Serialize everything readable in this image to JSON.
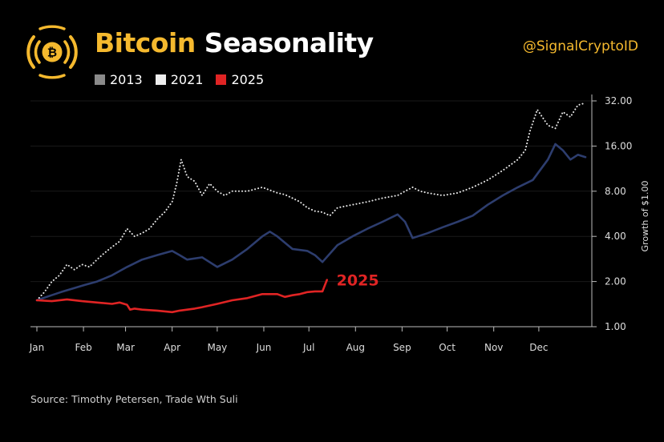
{
  "header": {
    "title_accent": "Bitcoin",
    "title_rest": "Seasonality",
    "handle": "@SignalCryptoID"
  },
  "legend": [
    {
      "label": "2013",
      "color": "#8a8a8a"
    },
    {
      "label": "2021",
      "color": "#eeeeee"
    },
    {
      "label": "2025",
      "color": "#e02424"
    }
  ],
  "source": "Source: Timothy Petersen, Trade Wth Suli",
  "colors": {
    "accent": "#f5b92e",
    "series_2013": "#2d3d6e",
    "series_2021": "#e6e6e6",
    "series_2025": "#e02424"
  },
  "chart_data": {
    "type": "line",
    "title": "Bitcoin Seasonality",
    "xlabel": "",
    "ylabel": "Growth of $1.00",
    "y_scale": "log2",
    "ylim": [
      1,
      40
    ],
    "ytick_values": [
      1,
      2,
      4,
      8,
      16,
      32
    ],
    "ytick_labels": [
      "1.00",
      "2.00",
      "4.00",
      "8.00",
      "16.00",
      "32.00"
    ],
    "x_unit": "day of year (0-365)",
    "xlim": [
      0,
      365
    ],
    "month_ticks": [
      0,
      31,
      59,
      90,
      120,
      151,
      181,
      212,
      243,
      273,
      304,
      334
    ],
    "month_labels": [
      "Jan",
      "Feb",
      "Mar",
      "Apr",
      "May",
      "Jun",
      "Jul",
      "Aug",
      "Sep",
      "Oct",
      "Nov",
      "Dec"
    ],
    "series": [
      {
        "name": "2013",
        "style": "solid",
        "x": [
          0,
          8,
          16,
          24,
          32,
          40,
          50,
          60,
          70,
          80,
          90,
          95,
          100,
          110,
          120,
          130,
          140,
          150,
          155,
          160,
          170,
          180,
          185,
          190,
          200,
          210,
          220,
          230,
          240,
          245,
          250,
          260,
          270,
          280,
          290,
          300,
          310,
          320,
          330,
          340,
          345,
          350,
          355,
          360,
          365
        ],
        "values": [
          1.5,
          1.6,
          1.7,
          1.8,
          1.9,
          2.0,
          2.2,
          2.5,
          2.8,
          3.0,
          3.2,
          3.0,
          2.8,
          2.9,
          2.5,
          2.8,
          3.3,
          4.0,
          4.3,
          4.0,
          3.3,
          3.2,
          3.0,
          2.7,
          3.5,
          4.0,
          4.5,
          5.0,
          5.6,
          5.0,
          3.9,
          4.2,
          4.6,
          5.0,
          5.5,
          6.5,
          7.5,
          8.5,
          9.5,
          13.0,
          16.5,
          15.0,
          13.0,
          14.0,
          13.5
        ]
      },
      {
        "name": "2021",
        "style": "dotted",
        "x": [
          0,
          5,
          10,
          15,
          20,
          25,
          30,
          35,
          40,
          45,
          50,
          55,
          60,
          65,
          70,
          75,
          80,
          85,
          90,
          93,
          96,
          100,
          105,
          110,
          115,
          120,
          125,
          130,
          140,
          150,
          160,
          165,
          170,
          175,
          180,
          185,
          190,
          195,
          200,
          210,
          220,
          230,
          240,
          245,
          250,
          255,
          260,
          270,
          280,
          290,
          300,
          310,
          320,
          325,
          328,
          333,
          340,
          345,
          350,
          355,
          360,
          365
        ],
        "values": [
          1.5,
          1.7,
          2.0,
          2.2,
          2.6,
          2.4,
          2.6,
          2.5,
          2.8,
          3.1,
          3.4,
          3.7,
          4.5,
          4.0,
          4.2,
          4.5,
          5.2,
          5.8,
          6.8,
          9.0,
          13.0,
          10.0,
          9.3,
          7.5,
          9.0,
          8.0,
          7.5,
          8.0,
          8.0,
          8.5,
          7.8,
          7.6,
          7.2,
          6.8,
          6.2,
          5.9,
          5.8,
          5.5,
          6.2,
          6.5,
          6.8,
          7.2,
          7.5,
          8.0,
          8.5,
          8.0,
          7.8,
          7.5,
          7.8,
          8.5,
          9.5,
          11.0,
          13.0,
          15.0,
          20.0,
          28.0,
          22.0,
          21.0,
          27.0,
          25.0,
          30.0,
          31.0
        ]
      },
      {
        "name": "2025",
        "style": "solid",
        "end_label": "2025",
        "x": [
          0,
          10,
          20,
          30,
          40,
          50,
          55,
          60,
          62,
          65,
          70,
          80,
          90,
          95,
          100,
          105,
          110,
          120,
          130,
          140,
          150,
          160,
          165,
          170,
          175,
          180,
          185,
          190,
          193
        ],
        "values": [
          1.5,
          1.48,
          1.52,
          1.48,
          1.45,
          1.42,
          1.45,
          1.4,
          1.3,
          1.32,
          1.3,
          1.28,
          1.25,
          1.28,
          1.3,
          1.32,
          1.35,
          1.42,
          1.5,
          1.55,
          1.65,
          1.65,
          1.58,
          1.62,
          1.65,
          1.7,
          1.72,
          1.72,
          2.05
        ]
      }
    ]
  }
}
